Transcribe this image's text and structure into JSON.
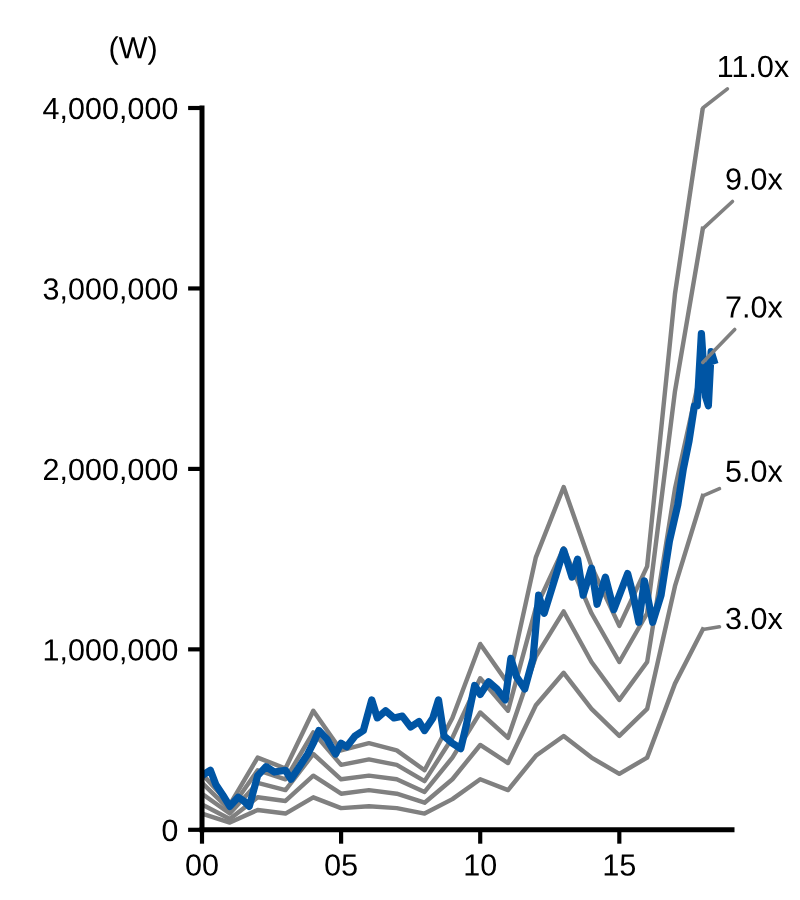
{
  "chart_data": {
    "type": "line",
    "ylabel": "(W)",
    "x": [
      0,
      1,
      2,
      3,
      4,
      5,
      6,
      7,
      8,
      9,
      10,
      11,
      12,
      13,
      14,
      15,
      16,
      17,
      18
    ],
    "series": [
      {
        "name": "11.0x",
        "color": "#808080",
        "values": [
          310000,
          140000,
          400000,
          340000,
          660000,
          440000,
          480000,
          440000,
          330000,
          620000,
          1030000,
          810000,
          1510000,
          1900000,
          1460000,
          1130000,
          1460000,
          2970000,
          4000000
        ]
      },
      {
        "name": "9.0x",
        "color": "#808080",
        "values": [
          260000,
          110000,
          330000,
          280000,
          540000,
          360000,
          390000,
          360000,
          270000,
          510000,
          840000,
          660000,
          1230000,
          1560000,
          1200000,
          930000,
          1200000,
          2430000,
          3330000
        ]
      },
      {
        "name": "7.0x",
        "color": "#808080",
        "values": [
          200000,
          90000,
          260000,
          220000,
          420000,
          280000,
          300000,
          280000,
          210000,
          400000,
          650000,
          510000,
          960000,
          1210000,
          930000,
          720000,
          930000,
          1890000,
          2590000
        ]
      },
      {
        "name": "5.0x",
        "color": "#808080",
        "values": [
          140000,
          60000,
          180000,
          160000,
          300000,
          200000,
          220000,
          200000,
          150000,
          280000,
          470000,
          370000,
          690000,
          870000,
          670000,
          520000,
          670000,
          1350000,
          1850000
        ]
      },
      {
        "name": "3.0x",
        "color": "#808080",
        "values": [
          90000,
          40000,
          110000,
          90000,
          180000,
          120000,
          130000,
          120000,
          90000,
          170000,
          280000,
          220000,
          410000,
          520000,
          400000,
          310000,
          400000,
          810000,
          1110000
        ]
      },
      {
        "color": "#0055a4",
        "x": [
          0,
          0.3,
          0.5,
          0.8,
          1,
          1.3,
          1.5,
          1.7,
          2,
          2.3,
          2.6,
          3,
          3.2,
          3.5,
          3.8,
          4,
          4.2,
          4.5,
          4.8,
          5,
          5.2,
          5.5,
          5.8,
          6.1,
          6.3,
          6.6,
          6.9,
          7.2,
          7.5,
          7.8,
          8,
          8.3,
          8.5,
          8.7,
          9,
          9.3,
          9.5,
          9.8,
          10,
          10.3,
          10.6,
          10.9,
          11.1,
          11.3,
          11.6,
          11.9,
          12.1,
          12.3,
          12.6,
          12.8,
          13,
          13.3,
          13.5,
          13.7,
          14,
          14.2,
          14.5,
          14.8,
          15,
          15.3,
          15.5,
          15.7,
          15.9,
          16.2,
          16.5,
          16.8,
          17.1,
          17.3,
          17.5,
          17.7,
          17.8,
          17.95,
          18.1,
          18.2,
          18.3,
          18.4
        ],
        "values": [
          300000,
          330000,
          250000,
          180000,
          130000,
          180000,
          160000,
          130000,
          300000,
          350000,
          320000,
          330000,
          280000,
          350000,
          420000,
          480000,
          550000,
          500000,
          420000,
          480000,
          460000,
          520000,
          550000,
          720000,
          620000,
          660000,
          620000,
          630000,
          570000,
          600000,
          550000,
          620000,
          720000,
          520000,
          480000,
          450000,
          580000,
          800000,
          750000,
          820000,
          780000,
          720000,
          950000,
          850000,
          780000,
          950000,
          1300000,
          1200000,
          1350000,
          1450000,
          1550000,
          1400000,
          1500000,
          1300000,
          1450000,
          1250000,
          1400000,
          1220000,
          1300000,
          1420000,
          1300000,
          1150000,
          1380000,
          1150000,
          1300000,
          1600000,
          1800000,
          2000000,
          2150000,
          2350000,
          2350000,
          2750000,
          2400000,
          2350000,
          2650000,
          2600000
        ]
      }
    ],
    "xlim": [
      0,
      19.05
    ],
    "xticks": [
      {
        "value": 0,
        "label": "00"
      },
      {
        "value": 5,
        "label": "05"
      },
      {
        "value": 10,
        "label": "10"
      },
      {
        "value": 15,
        "label": "15"
      }
    ],
    "ylim": [
      0,
      4000000
    ],
    "yticks": [
      0,
      {
        "value": 1000000,
        "label": "1,000,000"
      },
      {
        "value": 2000000,
        "label": "2,000,000"
      },
      {
        "value": 3000000,
        "label": "3,000,000"
      },
      {
        "value": 4000000,
        "label": "4,000,000"
      }
    ],
    "grid": false,
    "legend": "right"
  }
}
